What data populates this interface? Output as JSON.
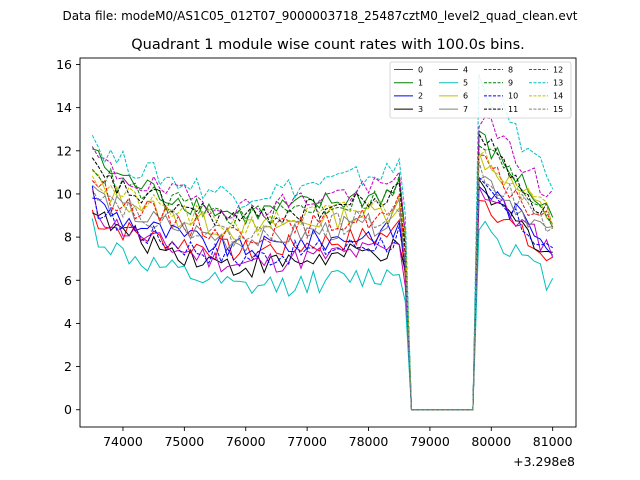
{
  "header": {
    "datafile": "Data file: modeM0/AS1C05_012T07_9000003718_25487cztM0_level2_quad_clean.evt"
  },
  "chart_data": {
    "type": "line",
    "title": "Quadrant 1 module wise count rates with 100.0s bins.",
    "xlabel": "",
    "ylabel": "",
    "x_offset_label": "+3.298e8",
    "xlim": [
      73300,
      81380
    ],
    "ylim": [
      -0.8,
      16.3
    ],
    "x_ticks": [
      74000,
      75000,
      76000,
      77000,
      78000,
      79000,
      80000,
      81000
    ],
    "x_tick_labels": [
      "74000",
      "75000",
      "76000",
      "77000",
      "78000",
      "79000",
      "80000",
      "81000"
    ],
    "y_ticks": [
      0,
      2,
      4,
      6,
      8,
      10,
      12,
      14,
      16
    ],
    "y_tick_labels": [
      "0",
      "2",
      "4",
      "6",
      "8",
      "10",
      "12",
      "14",
      "16"
    ],
    "x_start": 73500,
    "x_step": 100,
    "gap_start": 78700,
    "gap_end": 79600,
    "legend_position": "top-right",
    "series": [
      {
        "name": "0",
        "color": "#ff0000",
        "dash": "solid",
        "start": 9.2,
        "dip": 7.3,
        "end": 6.7,
        "peak": 10.0
      },
      {
        "name": "1",
        "color": "#008000",
        "dash": "solid",
        "start": 12.2,
        "dip": 9.0,
        "end": 9.0,
        "peak": 12.6
      },
      {
        "name": "2",
        "color": "#0000ff",
        "dash": "solid",
        "start": 10.1,
        "dip": 7.4,
        "end": 7.7,
        "peak": 10.5
      },
      {
        "name": "3",
        "color": "#000000",
        "dash": "solid",
        "start": 9.6,
        "dip": 6.6,
        "end": 7.2,
        "peak": 10.2
      },
      {
        "name": "4",
        "color": "#bf00bf",
        "dash": "solid",
        "start": 9.8,
        "dip": 6.7,
        "end": 7.4,
        "peak": 10.3
      },
      {
        "name": "5",
        "color": "#00bfbf",
        "dash": "solid",
        "start": 8.6,
        "dip": 5.6,
        "end": 5.8,
        "peak": 8.8
      },
      {
        "name": "6",
        "color": "#bfbf00",
        "dash": "solid",
        "start": 11.0,
        "dip": 8.3,
        "end": 8.8,
        "peak": 11.8
      },
      {
        "name": "7",
        "color": "#808080",
        "dash": "solid",
        "start": 10.5,
        "dip": 7.8,
        "end": 8.0,
        "peak": 11.0
      },
      {
        "name": "8",
        "color": "#ff0000",
        "dash": "dashed",
        "start": 10.9,
        "dip": 8.1,
        "end": 8.4,
        "peak": 11.5
      },
      {
        "name": "9",
        "color": "#008000",
        "dash": "dashed",
        "start": 11.6,
        "dip": 8.9,
        "end": 8.9,
        "peak": 12.4
      },
      {
        "name": "10",
        "color": "#0000ff",
        "dash": "dashed",
        "start": 9.9,
        "dip": 7.0,
        "end": 7.3,
        "peak": 10.3
      },
      {
        "name": "11",
        "color": "#000000",
        "dash": "dashed",
        "start": 11.4,
        "dip": 8.8,
        "end": 8.7,
        "peak": 12.8
      },
      {
        "name": "12",
        "color": "#bf00bf",
        "dash": "dashed",
        "start": 12.1,
        "dip": 9.3,
        "end": 9.8,
        "peak": 13.6
      },
      {
        "name": "13",
        "color": "#00bfbf",
        "dash": "dashed",
        "start": 12.8,
        "dip": 9.9,
        "end": 10.3,
        "peak": 15.4
      },
      {
        "name": "14",
        "color": "#bfbf00",
        "dash": "dashed",
        "start": 11.1,
        "dip": 8.5,
        "end": 8.9,
        "peak": 12.1
      },
      {
        "name": "15",
        "color": "#808080",
        "dash": "dashed",
        "start": 10.7,
        "dip": 8.0,
        "end": 8.3,
        "peak": 11.2
      }
    ]
  }
}
